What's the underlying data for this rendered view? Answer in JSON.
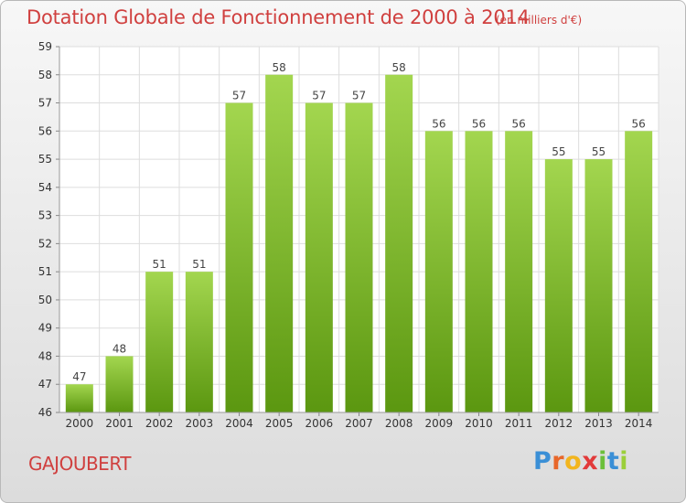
{
  "title": "Dotation Globale de Fonctionnement de 2000 à 2014",
  "unit_note": "(en milliers d'€)",
  "commune": "GAJOUBERT",
  "brand": {
    "letters": [
      "P",
      "r",
      "o",
      "x",
      "i",
      "t",
      "i"
    ],
    "colors": [
      "#3a8fd6",
      "#e8672a",
      "#f2b51e",
      "#e23a3a",
      "#6bbf3a",
      "#3a8fd6",
      "#9bcf3a"
    ]
  },
  "colors": {
    "title": "#d0403f",
    "bar_light": "#9fd24d",
    "bar_dark": "#5e9a12"
  },
  "chart_data": {
    "type": "bar",
    "title": "Dotation Globale de Fonctionnement de 2000 à 2014",
    "categories": [
      "2000",
      "2001",
      "2002",
      "2003",
      "2004",
      "2005",
      "2006",
      "2007",
      "2008",
      "2009",
      "2010",
      "2011",
      "2012",
      "2013",
      "2014"
    ],
    "values": [
      47,
      48,
      51,
      51,
      57,
      58,
      57,
      57,
      58,
      56,
      56,
      56,
      55,
      55,
      56
    ],
    "yticks": [
      46,
      47,
      48,
      49,
      50,
      51,
      52,
      53,
      54,
      55,
      56,
      57,
      58,
      59
    ],
    "ylim": [
      46,
      59
    ],
    "grid": true,
    "data_labels": true
  }
}
